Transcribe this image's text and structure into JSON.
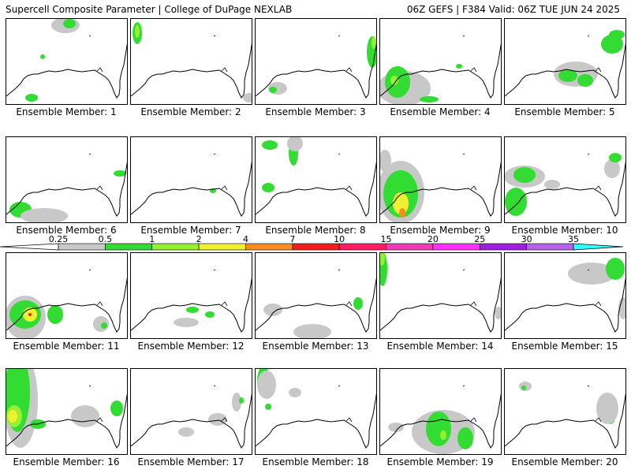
{
  "header": {
    "left": "Supercell Composite Parameter | College of DuPage NEXLAB",
    "right": "06Z GEFS | F384 Valid: 06Z TUE JUN 24 2025"
  },
  "panel_label_prefix": "Ensemble Member:",
  "members": [
    1,
    2,
    3,
    4,
    5,
    6,
    7,
    8,
    9,
    10,
    11,
    12,
    13,
    14,
    15,
    16,
    17,
    18,
    19,
    20
  ],
  "colorbar": {
    "ticks": [
      "0.25",
      "0.5",
      "1",
      "2",
      "4",
      "7",
      "10",
      "15",
      "20",
      "25",
      "30",
      "35"
    ],
    "colors": [
      "#c8c8c8",
      "#32dc32",
      "#96f032",
      "#f0f032",
      "#ff8c1e",
      "#f01e1e",
      "#ff1e64",
      "#f03cb4",
      "#ff32ff",
      "#9b1ee1",
      "#b464e6",
      "#32ffff"
    ]
  },
  "map_colors": {
    "light": "#c8c8c8",
    "green": "#32dc32",
    "lime": "#96f032",
    "yellow": "#f0f032",
    "orange": "#ff8c1e",
    "red": "#f01e1e"
  }
}
